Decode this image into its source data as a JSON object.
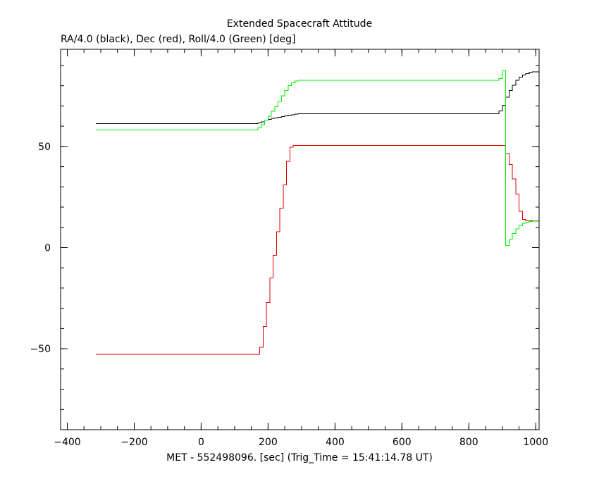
{
  "chart_data": {
    "type": "line",
    "title": "Extended Spacecraft Attitude",
    "subtitle": "RA/4.0 (black), Dec (red), Roll/4.0 (Green) [deg]",
    "xlabel": "MET - 552498096. [sec] (Trig_Time = 15:41:14.78 UT)",
    "ylabel": "",
    "xlim": [
      -420,
      1010
    ],
    "ylim": [
      -90,
      98
    ],
    "xticks": [
      -400,
      -200,
      0,
      200,
      400,
      600,
      800,
      1000
    ],
    "xtick_labels": [
      "−400",
      "−200",
      "0",
      "200",
      "400",
      "600",
      "800",
      "1000"
    ],
    "yticks": [
      -50,
      0,
      50
    ],
    "ytick_labels": [
      "−50",
      "0",
      "50"
    ],
    "x_minor_step": 50,
    "y_minor_step": 10,
    "grid": false,
    "step": true,
    "series": [
      {
        "color": "#000000",
        "x": [
          -315,
          160,
          170,
          180,
          190,
          200,
          210,
          220,
          230,
          240,
          250,
          260,
          270,
          280,
          290,
          300,
          880,
          890,
          900,
          910,
          920,
          930,
          940,
          950,
          960,
          970,
          980,
          990,
          1000,
          1010
        ],
        "y": [
          61.2,
          61.2,
          61.7,
          62.2,
          62.8,
          63.3,
          63.8,
          64.1,
          64.4,
          64.8,
          65.1,
          65.4,
          65.7,
          65.9,
          66.1,
          66.2,
          66.2,
          67.5,
          70.3,
          74.3,
          77.7,
          80.3,
          82.6,
          84.3,
          85.3,
          86.0,
          86.6,
          86.8,
          86.9,
          86.9
        ]
      },
      {
        "color": "#dd0000",
        "x": [
          -315,
          165,
          175,
          185,
          195,
          205,
          215,
          225,
          235,
          245,
          255,
          265,
          275,
          285,
          295,
          305,
          900,
          910,
          920,
          930,
          940,
          950,
          960,
          970,
          980,
          990,
          1000,
          1010
        ],
        "y": [
          -52.8,
          -52.8,
          -49.3,
          -39.0,
          -27.1,
          -15.0,
          -3.8,
          7.8,
          19.5,
          31.0,
          42.6,
          49.6,
          50.5,
          50.5,
          50.5,
          50.5,
          50.5,
          46.5,
          41.0,
          34.0,
          26.5,
          18.0,
          14.0,
          13.3,
          13.2,
          13.2,
          13.2,
          13.2
        ],
        "note": null
      },
      {
        "color": "#00ee00",
        "x": [
          -315,
          160,
          170,
          180,
          190,
          200,
          210,
          220,
          230,
          240,
          250,
          260,
          270,
          280,
          290,
          300,
          880,
          890,
          900,
          910,
          920,
          930,
          940,
          950,
          960,
          970,
          980,
          990,
          1000,
          1010
        ],
        "y": [
          58.2,
          58.2,
          59.1,
          60.8,
          62.8,
          65.0,
          67.3,
          69.7,
          72.3,
          75.0,
          77.6,
          80.0,
          81.5,
          82.4,
          82.7,
          82.7,
          82.7,
          83.5,
          87.3,
          1.0,
          4.0,
          7.0,
          9.3,
          11.0,
          12.0,
          12.6,
          12.9,
          13.0,
          13.0,
          13.0
        ]
      }
    ]
  }
}
